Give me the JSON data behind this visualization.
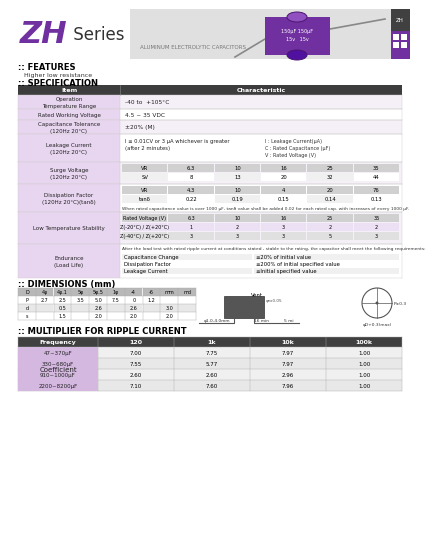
{
  "title_zh": "ZH",
  "title_series": "Series",
  "subtitle": "ALUMINUM ELECTROLYTIC CAPACITORS",
  "features_title": ":: FEATURES",
  "features_text": "Higher low resistance",
  "spec_title": ":: SPECIFICATION",
  "surge_vr": [
    "VR",
    "6.3",
    "10",
    "16",
    "25",
    "35"
  ],
  "surge_sv": [
    "SV",
    "8",
    "13",
    "20",
    "32",
    "44"
  ],
  "df_vr": [
    "VR",
    "4.3",
    "10",
    "4",
    "20",
    "76"
  ],
  "df_tan": [
    "tanδ",
    "0.22",
    "0.19",
    "0.15",
    "0.14",
    "0.13"
  ],
  "df_note": "When rated capacitance value is over 1000 μF, tanδ value shall be added 0.02 for each rated cap. with increases of every 1000 μF.",
  "lt_rated_v": [
    "Rated Voltage (V)",
    "6.3",
    "10",
    "16",
    "25",
    "35"
  ],
  "lt_row1": [
    "Z(-20°C) / Z(+20°C)",
    "1",
    "2",
    "3",
    "2",
    "2"
  ],
  "lt_row2": [
    "Z(-40°C) / Z(+20°C)",
    "3",
    "3",
    "3",
    "5",
    "3"
  ],
  "el_note": "After the load test with rated ripple current at conditions stated , stable to the rating, the capacitor shall meet the following requirements:",
  "el_rows": [
    [
      "Capacitance Change",
      "≤20% of initial value"
    ],
    [
      "Dissipation Factor",
      "≤200% of initial specified value"
    ],
    [
      "Leakage Current",
      "≤Initial specified value"
    ]
  ],
  "dim_title": ":: DIMENSIONS (mm)",
  "ripple_title": ":: MULTIPLIER FOR RIPPLE CURRENT",
  "ripple_header": [
    "Frequency",
    "120",
    "1k",
    "10k",
    "100k"
  ],
  "ripple_rows": [
    [
      "47~370μF",
      "7.00",
      "7.75",
      "7.97",
      "1.00"
    ],
    [
      "330~680μF",
      "7.55",
      "5.77",
      "7.97",
      "1.00"
    ],
    [
      "910~1000μF",
      "2.60",
      "2.60",
      "2.96",
      "1.00"
    ],
    [
      "2200~8200μF",
      "7.10",
      "7.60",
      "7.96",
      "1.00"
    ]
  ],
  "ripple_coeff_label": "Coefficient",
  "text_purple": "#7030a0",
  "header_dark": "#3d3d3d",
  "col1_bg": "#e8d5f0",
  "col2_bg_alt": "#f5f0f8",
  "ripple_coeff_bg": "#d4b8e0",
  "dim_header_bg": "#b8b8b8"
}
